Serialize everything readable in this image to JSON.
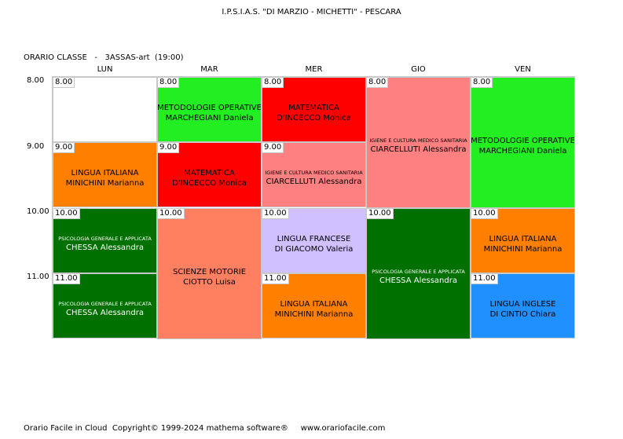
{
  "title": "I.P.S.I.A.S. \"DI MARZIO - MICHETTI\" - PESCARA",
  "class_header": "ORARIO CLASSE   -   3ASSAS-art  (19:00)",
  "days": [
    "LUN",
    "MAR",
    "MER",
    "GIO",
    "VEN"
  ],
  "hours": [
    "8.00",
    "9.00",
    "10.00",
    "11.00"
  ],
  "colors": {
    "empty": "#ffffff",
    "green_light": "#22ee22",
    "red": "#ff0000",
    "pink": "#ff8080",
    "orange": "#ff8000",
    "salmon": "#ff8060",
    "lavender": "#d0c0ff",
    "green_dark": "#007000",
    "blue": "#2090ff"
  },
  "lessons": [
    {
      "day": 0,
      "start": 0,
      "span": 1,
      "time": "8.00",
      "subject": "",
      "teacher": "",
      "color": "#ffffff",
      "small": false,
      "light_text": false
    },
    {
      "day": 0,
      "start": 1,
      "span": 1,
      "time": "9.00",
      "subject": "LINGUA ITALIANA",
      "teacher": "MINICHINI Marianna",
      "color": "#ff8000",
      "small": false,
      "light_text": false
    },
    {
      "day": 0,
      "start": 2,
      "span": 1,
      "time": "10.00",
      "subject": "PSICOLOGIA GENERALE E APPLICATA",
      "teacher": "CHESSA Alessandra",
      "color": "#007000",
      "small": true,
      "light_text": true
    },
    {
      "day": 0,
      "start": 3,
      "span": 1,
      "time": "11.00",
      "subject": "PSICOLOGIA GENERALE E APPLICATA",
      "teacher": "CHESSA Alessandra",
      "color": "#007000",
      "small": true,
      "light_text": true
    },
    {
      "day": 1,
      "start": 0,
      "span": 1,
      "time": "8.00",
      "subject": "METODOLOGIE OPERATIVE",
      "teacher": "MARCHEGIANI Daniela",
      "color": "#22ee22",
      "small": false,
      "light_text": false
    },
    {
      "day": 1,
      "start": 1,
      "span": 1,
      "time": "9.00",
      "subject": "MATEMATICA",
      "teacher": "D'INCECCO Monica",
      "color": "#ff0000",
      "small": false,
      "light_text": false
    },
    {
      "day": 1,
      "start": 2,
      "span": 2,
      "time": "10.00",
      "subject": "SCIENZE MOTORIE",
      "teacher": "CIOTTO Luisa",
      "color": "#ff8060",
      "small": false,
      "light_text": false
    },
    {
      "day": 2,
      "start": 0,
      "span": 1,
      "time": "8.00",
      "subject": "MATEMATICA",
      "teacher": "D'INCECCO Monica",
      "color": "#ff0000",
      "small": false,
      "light_text": false
    },
    {
      "day": 2,
      "start": 1,
      "span": 1,
      "time": "9.00",
      "subject": "IGIENE E CULTURA MEDICO SANITARIA",
      "teacher": "CIARCELLUTI Alessandra",
      "color": "#ff8080",
      "small": true,
      "light_text": false
    },
    {
      "day": 2,
      "start": 2,
      "span": 1,
      "time": "10.00",
      "subject": "LINGUA FRANCESE",
      "teacher": "DI GIACOMO Valeria",
      "color": "#d0c0ff",
      "small": false,
      "light_text": false
    },
    {
      "day": 2,
      "start": 3,
      "span": 1,
      "time": "11.00",
      "subject": "LINGUA ITALIANA",
      "teacher": "MINICHINI Marianna",
      "color": "#ff8000",
      "small": false,
      "light_text": false
    },
    {
      "day": 3,
      "start": 0,
      "span": 2,
      "time": "8.00",
      "subject": "IGIENE E CULTURA MEDICO SANITARIA",
      "teacher": "CIARCELLUTI Alessandra",
      "color": "#ff8080",
      "small": true,
      "light_text": false
    },
    {
      "day": 3,
      "start": 2,
      "span": 2,
      "time": "10.00",
      "subject": "PSICOLOGIA GENERALE E APPLICATA",
      "teacher": "CHESSA Alessandra",
      "color": "#007000",
      "small": true,
      "light_text": true
    },
    {
      "day": 4,
      "start": 0,
      "span": 2,
      "time": "8.00",
      "subject": "METODOLOGIE OPERATIVE",
      "teacher": "MARCHEGIANI Daniela",
      "color": "#22ee22",
      "small": false,
      "light_text": false
    },
    {
      "day": 4,
      "start": 2,
      "span": 1,
      "time": "10.00",
      "subject": "LINGUA ITALIANA",
      "teacher": "MINICHINI Marianna",
      "color": "#ff8000",
      "small": false,
      "light_text": false
    },
    {
      "day": 4,
      "start": 3,
      "span": 1,
      "time": "11.00",
      "subject": "LINGUA INGLESE",
      "teacher": "DI CINTIO Chiara",
      "color": "#2090ff",
      "small": false,
      "light_text": false
    }
  ],
  "footer": "Orario Facile in Cloud  Copyright© 1999-2024 mathema software®     www.orariofacile.com"
}
